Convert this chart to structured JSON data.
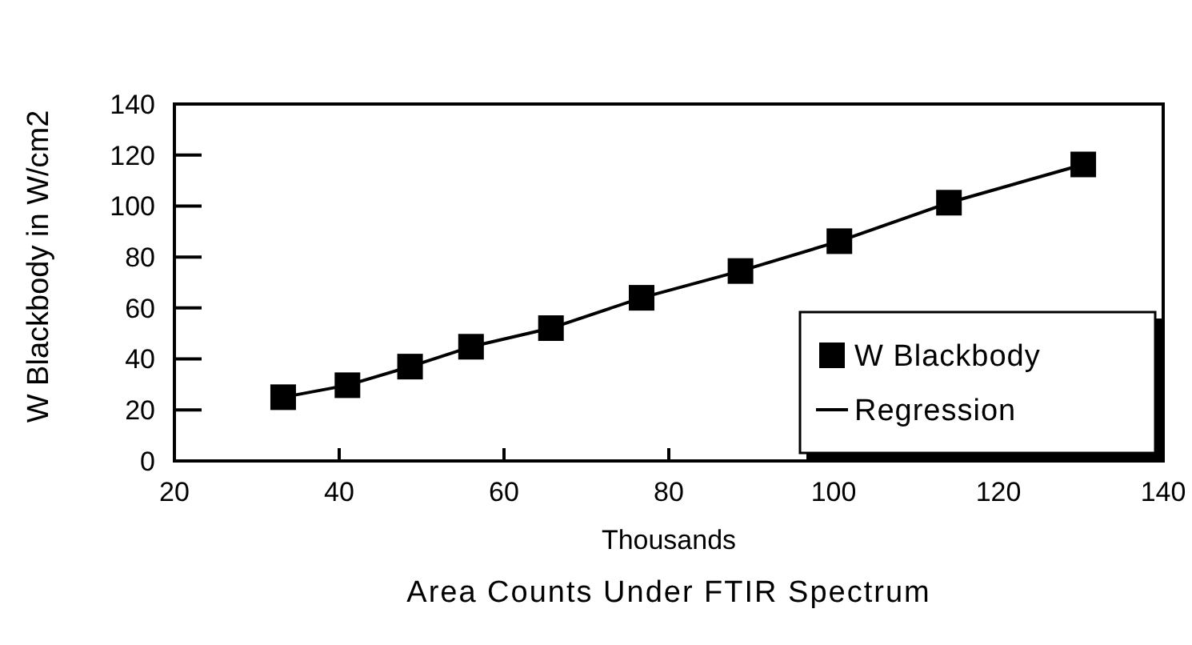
{
  "chart_data": {
    "type": "scatter",
    "xlabel": "Thousands",
    "ylabel": "W Blackbody in W/cm2",
    "annotations": [
      "Area Counts Under FTIR Spectrum"
    ],
    "x": [
      33.2,
      41.0,
      48.6,
      56.0,
      65.7,
      76.7,
      88.7,
      100.7,
      114.0,
      130.3
    ],
    "series": [
      {
        "name": "W Blackbody",
        "color": "#000000",
        "values": [
          25,
          29.7,
          37,
          44.8,
          52.1,
          64,
          74.5,
          86.2,
          101.3,
          116.3
        ],
        "marker": "square"
      },
      {
        "name": "Regression",
        "type": "line",
        "color": "#000000",
        "values": [
          25,
          29.7,
          37,
          44.8,
          52.1,
          64,
          74.5,
          86.2,
          101.3,
          116.3
        ],
        "marker": "none"
      }
    ],
    "xlim": [
      20,
      140
    ],
    "xticks": [
      20,
      40,
      60,
      80,
      100,
      120,
      140
    ],
    "ylim": [
      0,
      140
    ],
    "yticks": [
      0,
      20,
      40,
      60,
      80,
      100,
      120,
      140
    ],
    "grid": false,
    "legend": "bottom right"
  }
}
